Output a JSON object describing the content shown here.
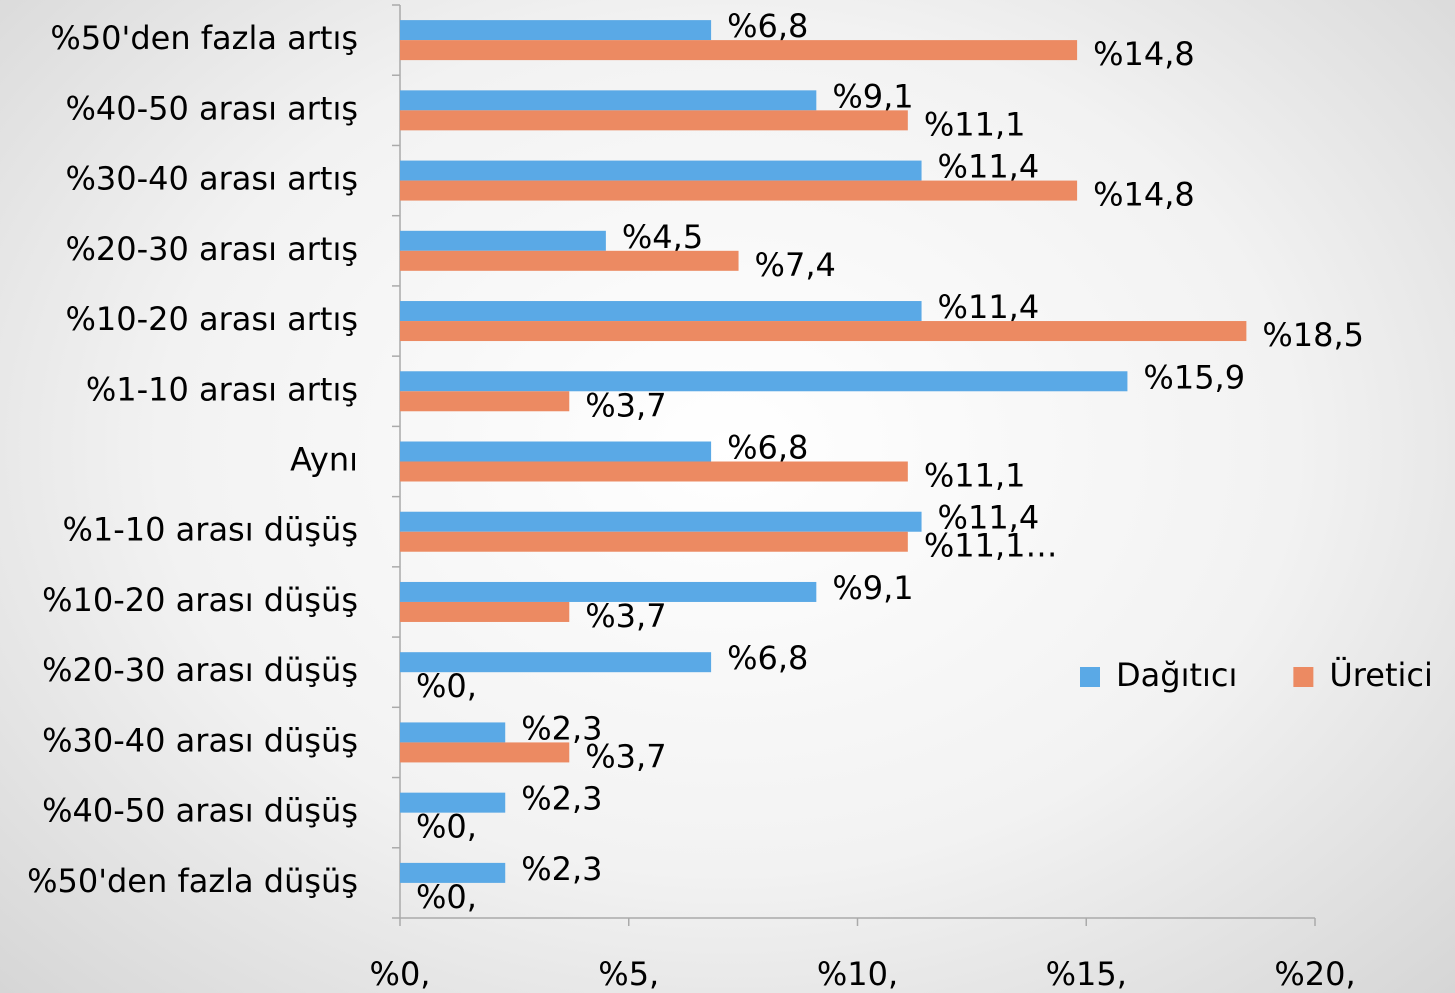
{
  "chart_data": {
    "type": "hbar",
    "categories": [
      "%50'den fazla artış",
      "%40-50 arası artış",
      "%30-40 arası artış",
      "%20-30 arası artış",
      "%10-20 arası artış",
      "%1-10 arası artış",
      "Aynı",
      "%1-10 arası düşüş",
      "%10-20 arası düşüş",
      "%20-30 arası düşüş",
      "%30-40 arası düşüş",
      "%40-50 arası düşüş",
      "%50'den fazla düşüş"
    ],
    "series": [
      {
        "name": "Dağıtıcı",
        "color": "#5aa9e6",
        "values": [
          6.8,
          9.1,
          11.4,
          4.5,
          11.4,
          15.9,
          6.8,
          11.4,
          9.1,
          6.8,
          2.3,
          2.3,
          2.3
        ],
        "value_labels": [
          "%6,8",
          "%9,1",
          "%11,4",
          "%4,5",
          "%11,4",
          "%15,9",
          "%6,8",
          "%11,4",
          "%9,1",
          "%6,8",
          "%2,3",
          "%2,3",
          "%2,3"
        ]
      },
      {
        "name": "Üretici",
        "color": "#ec8a62",
        "values": [
          14.8,
          11.1,
          14.8,
          7.4,
          18.5,
          3.7,
          11.1,
          11.1,
          3.7,
          0,
          3.7,
          0,
          0
        ],
        "value_labels": [
          "%14,8",
          "%11,1",
          "%14,8",
          "%7,4",
          "%18,5",
          "%3,7",
          "%11,1",
          "%11,1…",
          "%3,7",
          "%0,",
          "%3,7",
          "%0,",
          "%0,"
        ]
      }
    ],
    "xlim": [
      0,
      20
    ],
    "xticks": [
      {
        "value": 0,
        "label": "%0,"
      },
      {
        "value": 5,
        "label": "%5,"
      },
      {
        "value": 10,
        "label": "%10,"
      },
      {
        "value": 15,
        "label": "%15,"
      },
      {
        "value": 20,
        "label": "%20,"
      }
    ],
    "legend": "right"
  }
}
